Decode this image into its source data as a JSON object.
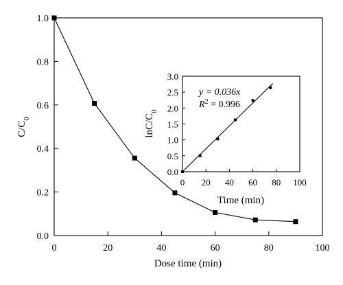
{
  "chart_data": [
    {
      "type": "line",
      "xlabel": "Dose time (min)",
      "ylabel_main": "C/C",
      "ylabel_sub": "0",
      "x": [
        0,
        15,
        30,
        45,
        60,
        75,
        90
      ],
      "series": [
        {
          "values": [
            1.0,
            0.607,
            0.356,
            0.196,
            0.106,
            0.072,
            0.064
          ]
        }
      ],
      "xlim": [
        0,
        100
      ],
      "ylim": [
        0.0,
        1.0
      ],
      "xticks": [
        "0",
        "20",
        "40",
        "60",
        "80",
        "100"
      ],
      "yticks": [
        "0.0",
        "0.2",
        "0.4",
        "0.6",
        "0.8",
        "1.0"
      ],
      "marker": "square",
      "grid": false
    },
    {
      "type": "scatter",
      "xlabel": "Time (min)",
      "ylabel_main": "lnC/C",
      "ylabel_sub": "0",
      "x": [
        0,
        15,
        30,
        45,
        60,
        75
      ],
      "series": [
        {
          "values": [
            0.0,
            0.5,
            1.03,
            1.63,
            2.24,
            2.64
          ]
        }
      ],
      "fit": {
        "slope": 0.036,
        "equation": "y = 0.036x",
        "r2_label": "R",
        "r2_exp": "2",
        "r2_value": " = 0.996"
      },
      "xlim": [
        0,
        100
      ],
      "ylim": [
        0.0,
        3.0
      ],
      "xticks": [
        "0",
        "20",
        "40",
        "60",
        "80",
        "100"
      ],
      "yticks": [
        "0.0",
        "0.5",
        "1.0",
        "1.5",
        "2.0",
        "2.5",
        "3.0"
      ],
      "marker": "square",
      "grid": false
    }
  ]
}
